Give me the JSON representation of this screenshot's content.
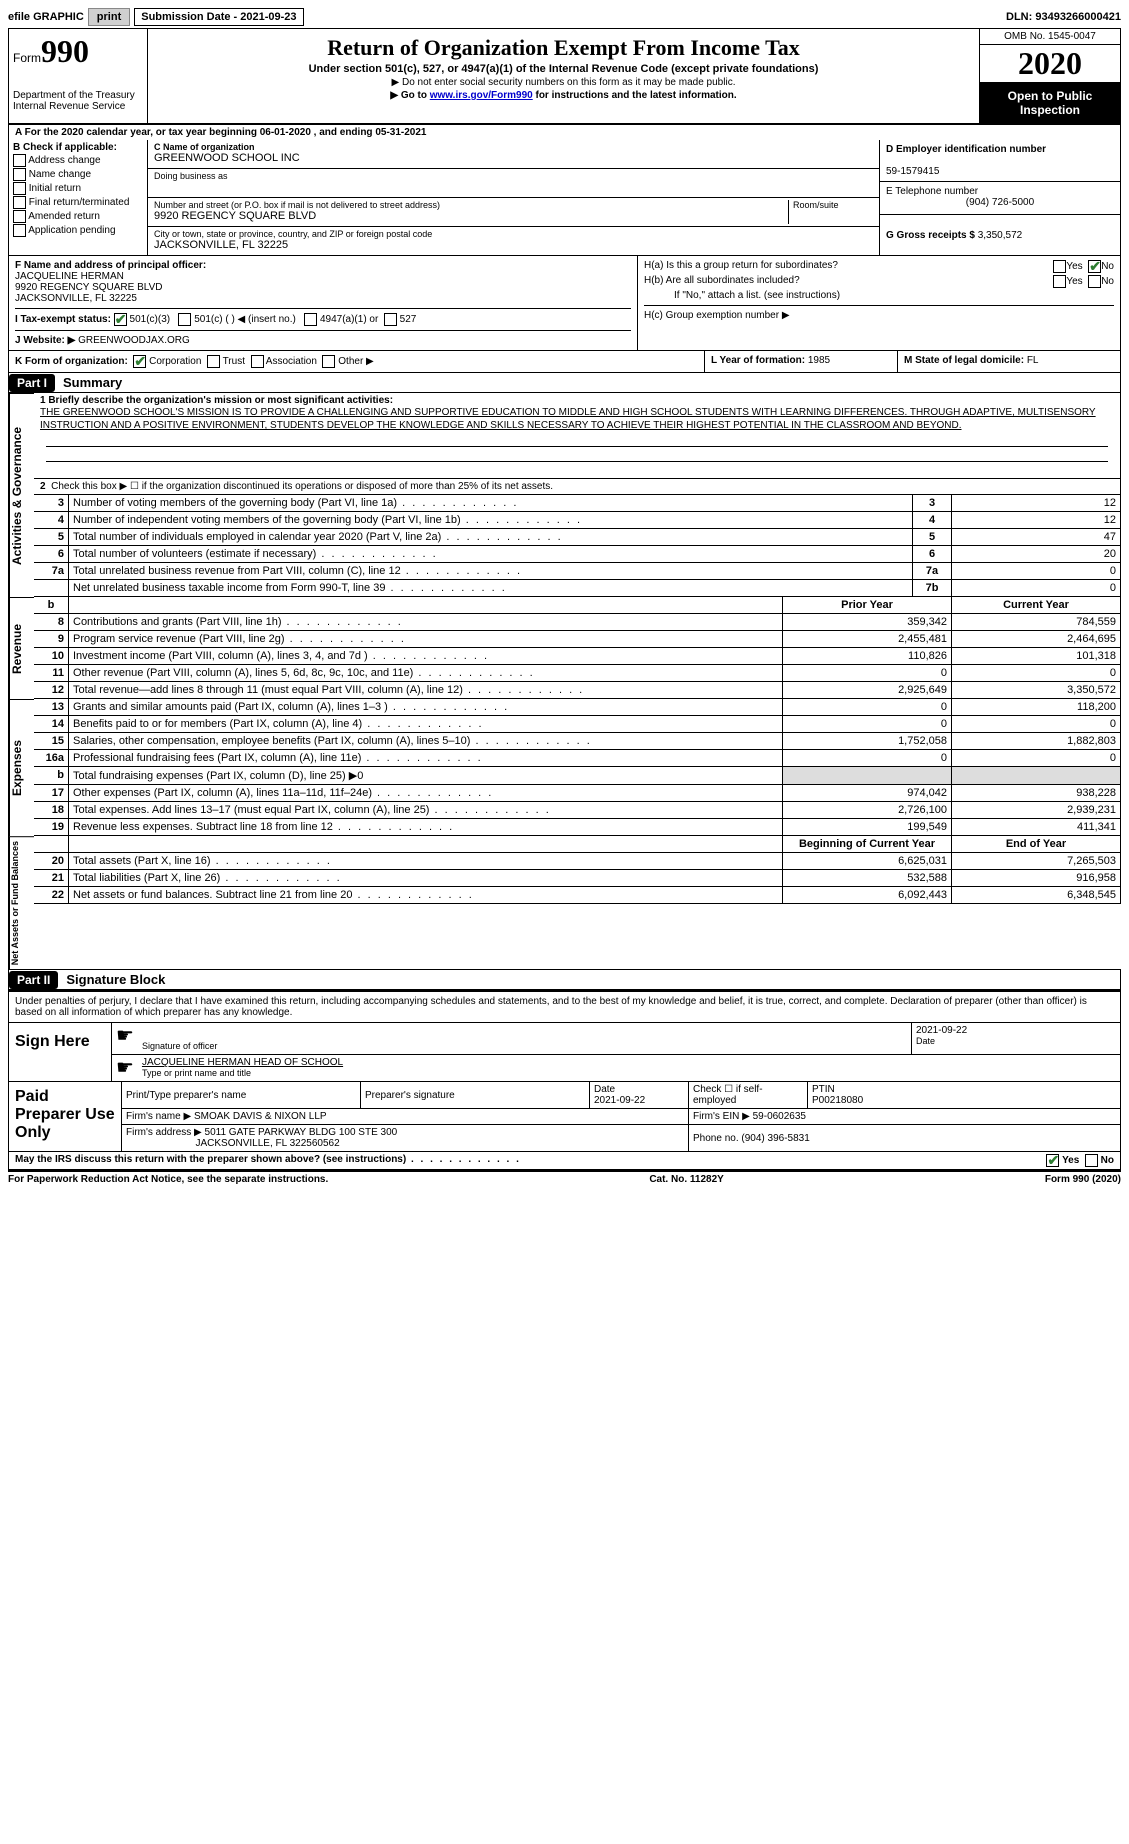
{
  "topbar": {
    "efile": "efile GRAPHIC",
    "print": "print",
    "submission": "Submission Date - 2021-09-23",
    "dln": "DLN: 93493266000421"
  },
  "header": {
    "form_word": "Form",
    "form_num": "990",
    "dept": "Department of the Treasury",
    "irs": "Internal Revenue Service",
    "title": "Return of Organization Exempt From Income Tax",
    "subtitle": "Under section 501(c), 527, or 4947(a)(1) of the Internal Revenue Code (except private foundations)",
    "ssn": "▶ Do not enter social security numbers on this form as it may be made public.",
    "goto_pre": "▶ Go to ",
    "goto_link": "www.irs.gov/Form990",
    "goto_post": " for instructions and the latest information.",
    "omb": "OMB No. 1545-0047",
    "year": "2020",
    "inspect": "Open to Public Inspection"
  },
  "row_a": "A For the 2020 calendar year, or tax year beginning 06-01-2020   , and ending 05-31-2021",
  "section_b": {
    "b_label": "B Check if applicable:",
    "checks": [
      "Address change",
      "Name change",
      "Initial return",
      "Final return/terminated",
      "Amended return",
      "Application pending"
    ],
    "c_label": "C Name of organization",
    "org_name": "GREENWOOD SCHOOL INC",
    "dba_label": "Doing business as",
    "addr_label": "Number and street (or P.O. box if mail is not delivered to street address)",
    "room_label": "Room/suite",
    "addr": "9920 REGENCY SQUARE BLVD",
    "city_label": "City or town, state or province, country, and ZIP or foreign postal code",
    "city": "JACKSONVILLE, FL  32225",
    "d_label": "D Employer identification number",
    "ein": "59-1579415",
    "e_label": "E Telephone number",
    "phone": "(904) 726-5000",
    "g_label": "G Gross receipts $",
    "gross": "3,350,572"
  },
  "section_fgh": {
    "f_label": "F Name and address of principal officer:",
    "officer_name": "JACQUELINE HERMAN",
    "officer_addr1": "9920 REGENCY SQUARE BLVD",
    "officer_addr2": "JACKSONVILLE, FL  32225",
    "i_label": "I   Tax-exempt status:",
    "i_501c3": "501(c)(3)",
    "i_501c": "501(c) (  ) ◀ (insert no.)",
    "i_4947": "4947(a)(1) or",
    "i_527": "527",
    "j_label": "J   Website: ▶",
    "website": "GREENWOODJAX.ORG",
    "ha_label": "H(a)  Is this a group return for subordinates?",
    "hb_label": "H(b)  Are all subordinates included?",
    "hb_note": "If \"No,\" attach a list. (see instructions)",
    "hc_label": "H(c)  Group exemption number ▶",
    "yes": "Yes",
    "no": "No"
  },
  "row_k": {
    "k_label": "K Form of organization:",
    "corp": "Corporation",
    "trust": "Trust",
    "assoc": "Association",
    "other": "Other ▶",
    "l_label": "L Year of formation:",
    "l_val": "1985",
    "m_label": "M State of legal domicile:",
    "m_val": "FL"
  },
  "part1": {
    "part": "Part I",
    "title": "Summary",
    "line1_label": "1  Briefly describe the organization's mission or most significant activities:",
    "mission": "THE GREENWOOD SCHOOL'S MISSION IS TO PROVIDE A CHALLENGING AND SUPPORTIVE EDUCATION TO MIDDLE AND HIGH SCHOOL STUDENTS WITH LEARNING DIFFERENCES. THROUGH ADAPTIVE, MULTISENSORY INSTRUCTION AND A POSITIVE ENVIRONMENT, STUDENTS DEVELOP THE KNOWLEDGE AND SKILLS NECESSARY TO ACHIEVE THEIR HIGHEST POTENTIAL IN THE CLASSROOM AND BEYOND.",
    "line2": "Check this box ▶ ☐ if the organization discontinued its operations or disposed of more than 25% of its net assets.",
    "side_gov": "Activities & Governance",
    "side_rev": "Revenue",
    "side_exp": "Expenses",
    "side_net": "Net Assets or Fund Balances",
    "gov_rows": [
      {
        "n": "3",
        "d": "Number of voting members of the governing body (Part VI, line 1a)",
        "b": "3",
        "v": "12"
      },
      {
        "n": "4",
        "d": "Number of independent voting members of the governing body (Part VI, line 1b)",
        "b": "4",
        "v": "12"
      },
      {
        "n": "5",
        "d": "Total number of individuals employed in calendar year 2020 (Part V, line 2a)",
        "b": "5",
        "v": "47"
      },
      {
        "n": "6",
        "d": "Total number of volunteers (estimate if necessary)",
        "b": "6",
        "v": "20"
      },
      {
        "n": "7a",
        "d": "Total unrelated business revenue from Part VIII, column (C), line 12",
        "b": "7a",
        "v": "0"
      },
      {
        "n": "",
        "d": "Net unrelated business taxable income from Form 990-T, line 39",
        "b": "7b",
        "v": "0"
      }
    ],
    "col_prior": "Prior Year",
    "col_curr": "Current Year",
    "rev_rows": [
      {
        "n": "8",
        "d": "Contributions and grants (Part VIII, line 1h)",
        "p": "359,342",
        "c": "784,559"
      },
      {
        "n": "9",
        "d": "Program service revenue (Part VIII, line 2g)",
        "p": "2,455,481",
        "c": "2,464,695"
      },
      {
        "n": "10",
        "d": "Investment income (Part VIII, column (A), lines 3, 4, and 7d )",
        "p": "110,826",
        "c": "101,318"
      },
      {
        "n": "11",
        "d": "Other revenue (Part VIII, column (A), lines 5, 6d, 8c, 9c, 10c, and 11e)",
        "p": "0",
        "c": "0"
      },
      {
        "n": "12",
        "d": "Total revenue—add lines 8 through 11 (must equal Part VIII, column (A), line 12)",
        "p": "2,925,649",
        "c": "3,350,572"
      }
    ],
    "exp_rows": [
      {
        "n": "13",
        "d": "Grants and similar amounts paid (Part IX, column (A), lines 1–3 )",
        "p": "0",
        "c": "118,200"
      },
      {
        "n": "14",
        "d": "Benefits paid to or for members (Part IX, column (A), line 4)",
        "p": "0",
        "c": "0"
      },
      {
        "n": "15",
        "d": "Salaries, other compensation, employee benefits (Part IX, column (A), lines 5–10)",
        "p": "1,752,058",
        "c": "1,882,803"
      },
      {
        "n": "16a",
        "d": "Professional fundraising fees (Part IX, column (A), line 11e)",
        "p": "0",
        "c": "0"
      },
      {
        "n": "b",
        "d": "Total fundraising expenses (Part IX, column (D), line 25) ▶0",
        "p": "",
        "c": ""
      },
      {
        "n": "17",
        "d": "Other expenses (Part IX, column (A), lines 11a–11d, 11f–24e)",
        "p": "974,042",
        "c": "938,228"
      },
      {
        "n": "18",
        "d": "Total expenses. Add lines 13–17 (must equal Part IX, column (A), line 25)",
        "p": "2,726,100",
        "c": "2,939,231"
      },
      {
        "n": "19",
        "d": "Revenue less expenses. Subtract line 18 from line 12",
        "p": "199,549",
        "c": "411,341"
      }
    ],
    "col_begin": "Beginning of Current Year",
    "col_end": "End of Year",
    "net_rows": [
      {
        "n": "20",
        "d": "Total assets (Part X, line 16)",
        "p": "6,625,031",
        "c": "7,265,503"
      },
      {
        "n": "21",
        "d": "Total liabilities (Part X, line 26)",
        "p": "532,588",
        "c": "916,958"
      },
      {
        "n": "22",
        "d": "Net assets or fund balances. Subtract line 21 from line 20",
        "p": "6,092,443",
        "c": "6,348,545"
      }
    ]
  },
  "part2": {
    "part": "Part II",
    "title": "Signature Block",
    "penalty": "Under penalties of perjury, I declare that I have examined this return, including accompanying schedules and statements, and to the best of my knowledge and belief, it is true, correct, and complete. Declaration of preparer (other than officer) is based on all information of which preparer has any knowledge.",
    "sign_here": "Sign Here",
    "sig_officer": "Signature of officer",
    "sig_date": "2021-09-22",
    "date_lbl": "Date",
    "officer_printed": "JACQUELINE HERMAN  HEAD OF SCHOOL",
    "type_name": "Type or print name and title",
    "paid": "Paid Preparer Use Only",
    "prep_name_lbl": "Print/Type preparer's name",
    "prep_sig_lbl": "Preparer's signature",
    "prep_date_lbl": "Date",
    "prep_date": "2021-09-22",
    "self_emp": "Check ☐ if self-employed",
    "ptin_lbl": "PTIN",
    "ptin": "P00218080",
    "firm_name_lbl": "Firm's name    ▶",
    "firm_name": "SMOAK DAVIS & NIXON LLP",
    "firm_ein_lbl": "Firm's EIN ▶",
    "firm_ein": "59-0602635",
    "firm_addr_lbl": "Firm's address ▶",
    "firm_addr1": "5011 GATE PARKWAY BLDG 100 STE 300",
    "firm_addr2": "JACKSONVILLE, FL  322560562",
    "firm_phone_lbl": "Phone no.",
    "firm_phone": "(904) 396-5831",
    "discuss": "May the IRS discuss this return with the preparer shown above? (see instructions)"
  },
  "footer": {
    "pra": "For Paperwork Reduction Act Notice, see the separate instructions.",
    "cat": "Cat. No. 11282Y",
    "form": "Form 990 (2020)"
  }
}
